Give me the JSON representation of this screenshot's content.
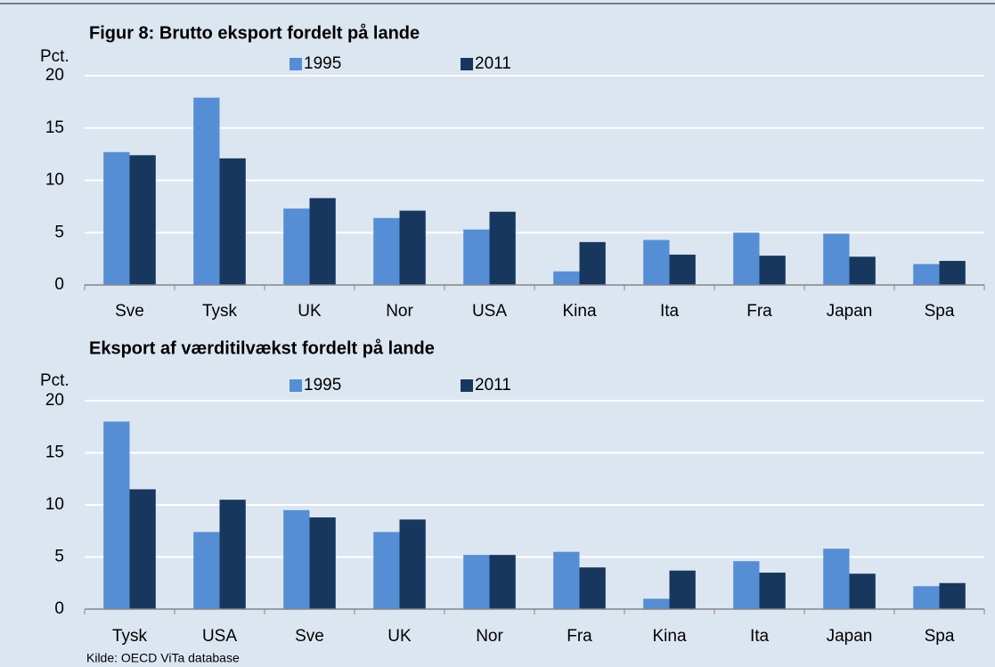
{
  "chart_data": [
    {
      "type": "bar",
      "title": "Figur 8: Brutto eksport fordelt på lande",
      "y_label": "Pct.",
      "categories": [
        "Sve",
        "Tysk",
        "UK",
        "Nor",
        "USA",
        "Kina",
        "Ita",
        "Fra",
        "Japan",
        "Spa"
      ],
      "series": [
        {
          "name": "1995",
          "color": "#558ed5",
          "values": [
            12.7,
            17.9,
            7.3,
            6.4,
            5.3,
            1.3,
            4.3,
            5.0,
            4.9,
            2.0
          ]
        },
        {
          "name": "2011",
          "color": "#17375e",
          "values": [
            12.4,
            12.1,
            8.3,
            7.1,
            7.0,
            4.1,
            2.9,
            2.8,
            2.7,
            2.3
          ]
        }
      ],
      "ylim": [
        0,
        20
      ],
      "yticks": [
        0,
        5,
        10,
        15,
        20
      ],
      "grid": true
    },
    {
      "type": "bar",
      "title": "Eksport af værditilvækst fordelt på lande",
      "y_label": "Pct.",
      "categories": [
        "Tysk",
        "USA",
        "Sve",
        "UK",
        "Nor",
        "Fra",
        "Kina",
        "Ita",
        "Japan",
        "Spa"
      ],
      "series": [
        {
          "name": "1995",
          "color": "#558ed5",
          "values": [
            18.0,
            7.4,
            9.5,
            7.4,
            5.2,
            5.5,
            1.0,
            4.6,
            5.8,
            2.2
          ]
        },
        {
          "name": "2011",
          "color": "#17375e",
          "values": [
            11.5,
            10.5,
            8.8,
            8.6,
            5.2,
            4.0,
            3.7,
            3.5,
            3.4,
            2.5
          ]
        }
      ],
      "ylim": [
        0,
        20
      ],
      "yticks": [
        0,
        5,
        10,
        15,
        20
      ],
      "grid": true
    }
  ],
  "source": "Kilde: OECD ViTa database"
}
